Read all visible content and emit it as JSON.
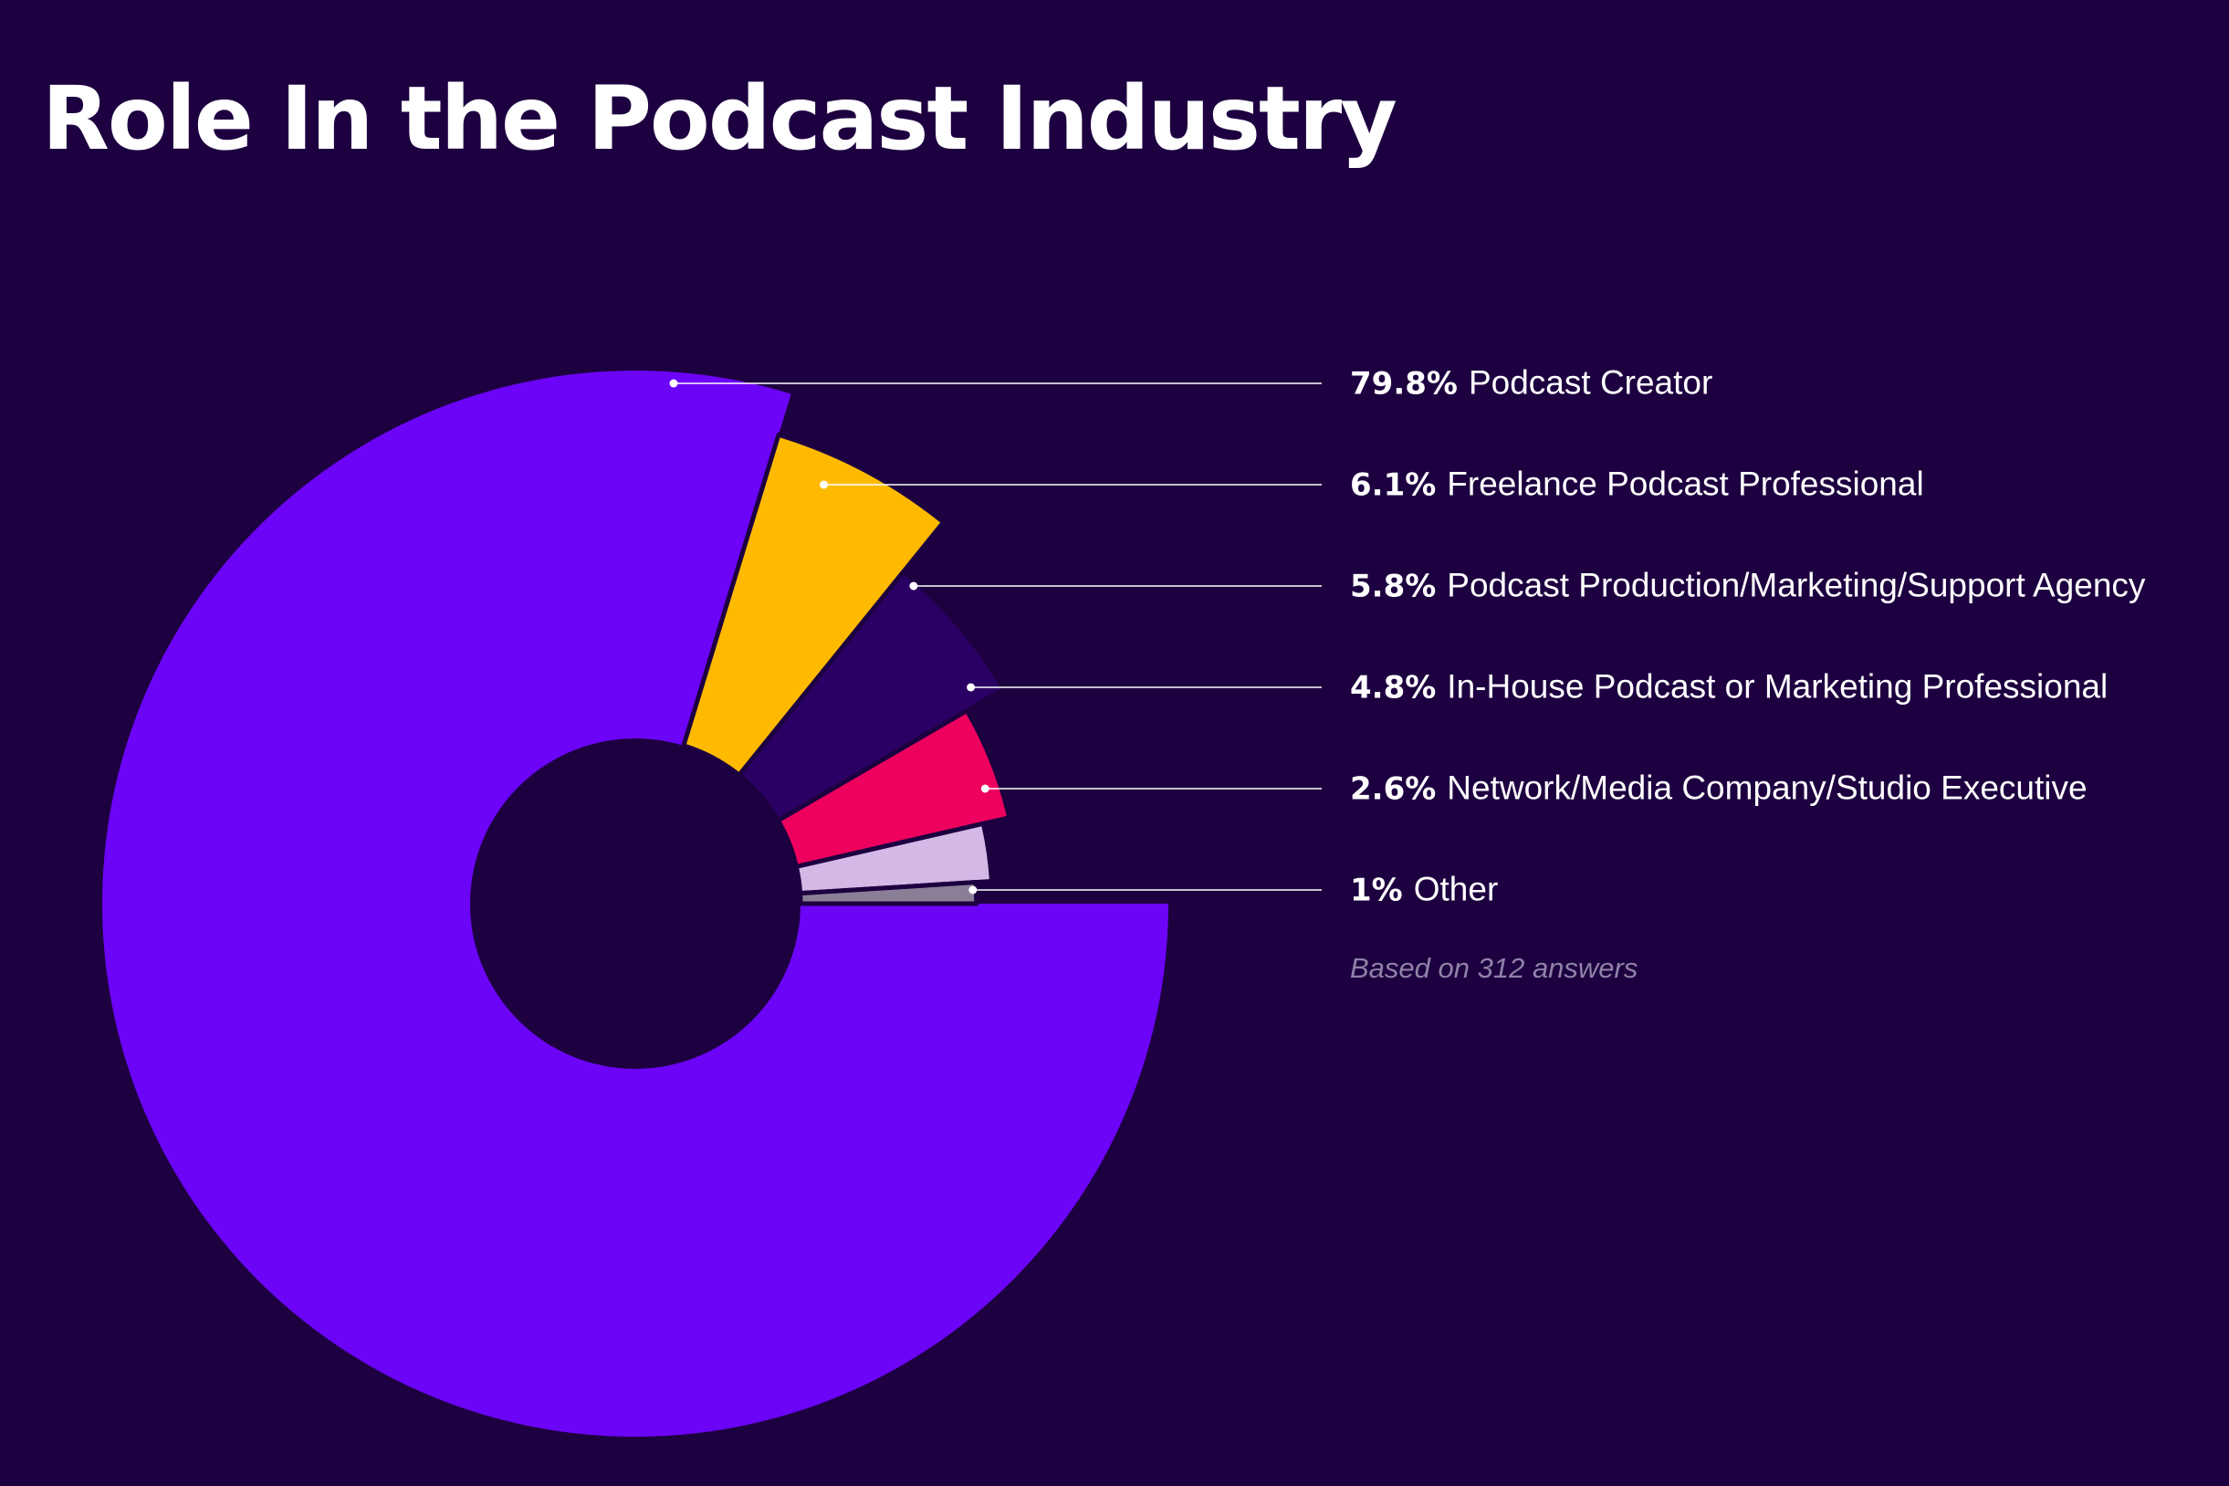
{
  "colors": {
    "background": "#1d0040",
    "text": "#ffffff",
    "muted": "#8f82a8",
    "slice_outline": "#1d0040"
  },
  "chart_data": {
    "type": "pie",
    "variant": "donut",
    "title": "Role In the Podcast Industry",
    "note": "Based on 312 answers",
    "slices": [
      {
        "label": "Podcast Creator",
        "value": 79.8,
        "value_label": "79.8%",
        "color": "#6c04f8",
        "radius_scale": 1.0
      },
      {
        "label": "Freelance Podcast Professional",
        "value": 6.1,
        "value_label": "6.1%",
        "color": "#ffba00",
        "radius_scale": 0.92
      },
      {
        "label": "Podcast Production/Marketing/Support Agency",
        "value": 5.8,
        "value_label": "5.8%",
        "color": "#2b0064",
        "radius_scale": 0.8
      },
      {
        "label": "In-House Podcast or Marketing Professional",
        "value": 4.8,
        "value_label": "4.8%",
        "color": "#ee005e",
        "radius_scale": 0.72
      },
      {
        "label": "Network/Media Company/Studio Executive",
        "value": 2.6,
        "value_label": "2.6%",
        "color": "#d4b8e6",
        "radius_scale": 0.67
      },
      {
        "label": "Other",
        "value": 1,
        "value_label": "1%",
        "color": "#8a7f96",
        "radius_scale": 0.64
      }
    ]
  }
}
